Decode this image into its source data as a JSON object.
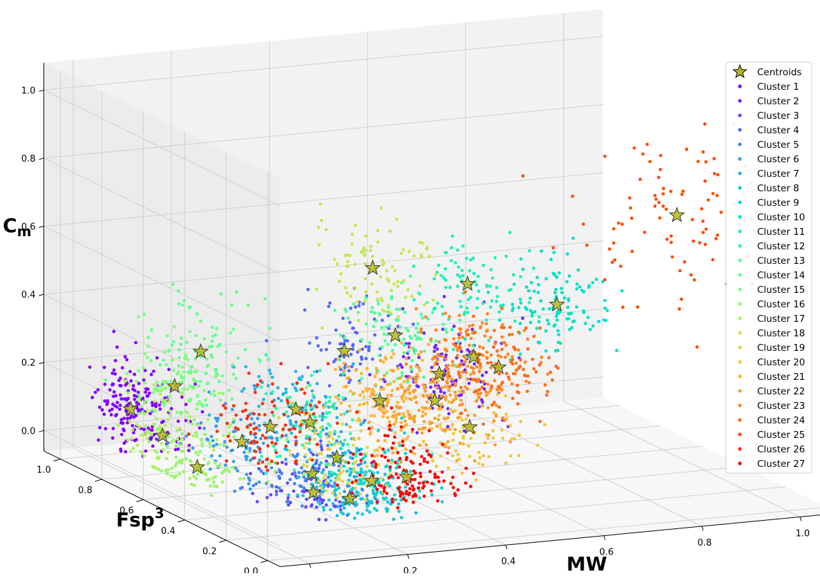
{
  "chart_data": {
    "type": "scatter",
    "projection": "3d",
    "title": "",
    "axes": {
      "x": {
        "label": "MW",
        "range": [
          0,
          1
        ],
        "ticks": [
          "0.0",
          "0.2",
          "0.4",
          "0.6",
          "0.8",
          "1.0"
        ]
      },
      "y": {
        "label": "Fsp",
        "label_superscript": "3",
        "range": [
          0,
          1
        ],
        "ticks": [
          "0.0",
          "0.2",
          "0.4",
          "0.6",
          "0.8",
          "1.0"
        ]
      },
      "z": {
        "label": "C",
        "label_subscript": "m",
        "range": [
          0,
          1
        ],
        "ticks": [
          "0.0",
          "0.2",
          "0.4",
          "0.6",
          "0.8",
          "1.0"
        ]
      }
    },
    "grid": true,
    "legend": {
      "placement": "right",
      "centroid_label": "Centroids",
      "centroid_color": "#b5b81c",
      "entries": [
        "Cluster 1",
        "Cluster 2",
        "Cluster 3",
        "Cluster 4",
        "Cluster 5",
        "Cluster 6",
        "Cluster 7",
        "Cluster 8",
        "Cluster 9",
        "Cluster 10",
        "Cluster 11",
        "Cluster 12",
        "Cluster 13",
        "Cluster 14",
        "Cluster 15",
        "Cluster 16",
        "Cluster 17",
        "Cluster 18",
        "Cluster 19",
        "Cluster 20",
        "Cluster 21",
        "Cluster 22",
        "Cluster 23",
        "Cluster 24",
        "Cluster 25",
        "Cluster 26",
        "Cluster 27"
      ],
      "colors": [
        "#8000ff",
        "#7123ff",
        "#6346fd",
        "#5468f9",
        "#4584f3",
        "#379ced",
        "#25b3e4",
        "#18c4db",
        "#0ad5d0",
        "#00e3c4",
        "#1ef1b8",
        "#33f7a9",
        "#50fe9a",
        "#66ff8c",
        "#7dfd7d",
        "#9af76e",
        "#b0f060",
        "#c5e655",
        "#dbd847",
        "#f0c83b",
        "#fdb532",
        "#fd9e2c",
        "#ff8522",
        "#ff6918",
        "#ff4a0e",
        "#ff2c07",
        "#ff0000"
      ]
    },
    "clusters": [
      {
        "name": "Cluster 1",
        "centroid": [
          0.02,
          0.85,
          0.12
        ]
      },
      {
        "name": "Cluster 2",
        "centroid": [
          0.48,
          0.45,
          0.28
        ]
      },
      {
        "name": "Cluster 3",
        "centroid": [
          0.16,
          0.3,
          0.02
        ]
      },
      {
        "name": "Cluster 4",
        "centroid": [
          0.35,
          0.6,
          0.32
        ]
      },
      {
        "name": "Cluster 5",
        "centroid": [
          0.2,
          0.4,
          0.04
        ]
      },
      {
        "name": "Cluster 6",
        "centroid": [
          0.12,
          0.55,
          0.1
        ]
      },
      {
        "name": "Cluster 7",
        "centroid": [
          0.23,
          0.55,
          0.18
        ]
      },
      {
        "name": "Cluster 8",
        "centroid": [
          0.2,
          0.22,
          0.02
        ]
      },
      {
        "name": "Cluster 9",
        "centroid": [
          0.3,
          0.35,
          0.02
        ]
      },
      {
        "name": "Cluster 10",
        "centroid": [
          0.72,
          0.45,
          0.45
        ]
      },
      {
        "name": "Cluster 11",
        "centroid": [
          0.58,
          0.55,
          0.5
        ]
      },
      {
        "name": "Cluster 12",
        "centroid": [
          0.28,
          0.6,
          0.12
        ]
      },
      {
        "name": "Cluster 13",
        "centroid": [
          0.42,
          0.52,
          0.38
        ]
      },
      {
        "name": "Cluster 14",
        "centroid": [
          0.15,
          0.82,
          0.28
        ]
      },
      {
        "name": "Cluster 15",
        "centroid": [
          0.08,
          0.78,
          0.2
        ]
      },
      {
        "name": "Cluster 16",
        "centroid": [
          0.05,
          0.6,
          0.02
        ]
      },
      {
        "name": "Cluster 17",
        "centroid": [
          0.03,
          0.72,
          0.08
        ]
      },
      {
        "name": "Cluster 18",
        "centroid": [
          0.45,
          0.7,
          0.52
        ]
      },
      {
        "name": "Cluster 19",
        "centroid": [
          0.25,
          0.4,
          0.08
        ]
      },
      {
        "name": "Cluster 20",
        "centroid": [
          0.5,
          0.35,
          0.15
        ]
      },
      {
        "name": "Cluster 21",
        "centroid": [
          0.38,
          0.5,
          0.2
        ]
      },
      {
        "name": "Cluster 22",
        "centroid": [
          0.45,
          0.4,
          0.22
        ]
      },
      {
        "name": "Cluster 23",
        "centroid": [
          0.55,
          0.45,
          0.32
        ]
      },
      {
        "name": "Cluster 24",
        "centroid": [
          0.58,
          0.4,
          0.3
        ]
      },
      {
        "name": "Cluster 25",
        "centroid": [
          0.88,
          0.25,
          0.75
        ]
      },
      {
        "name": "Cluster 26",
        "centroid": [
          0.22,
          0.65,
          0.1
        ]
      },
      {
        "name": "Cluster 27",
        "centroid": [
          0.35,
          0.3,
          0.04
        ]
      }
    ]
  }
}
